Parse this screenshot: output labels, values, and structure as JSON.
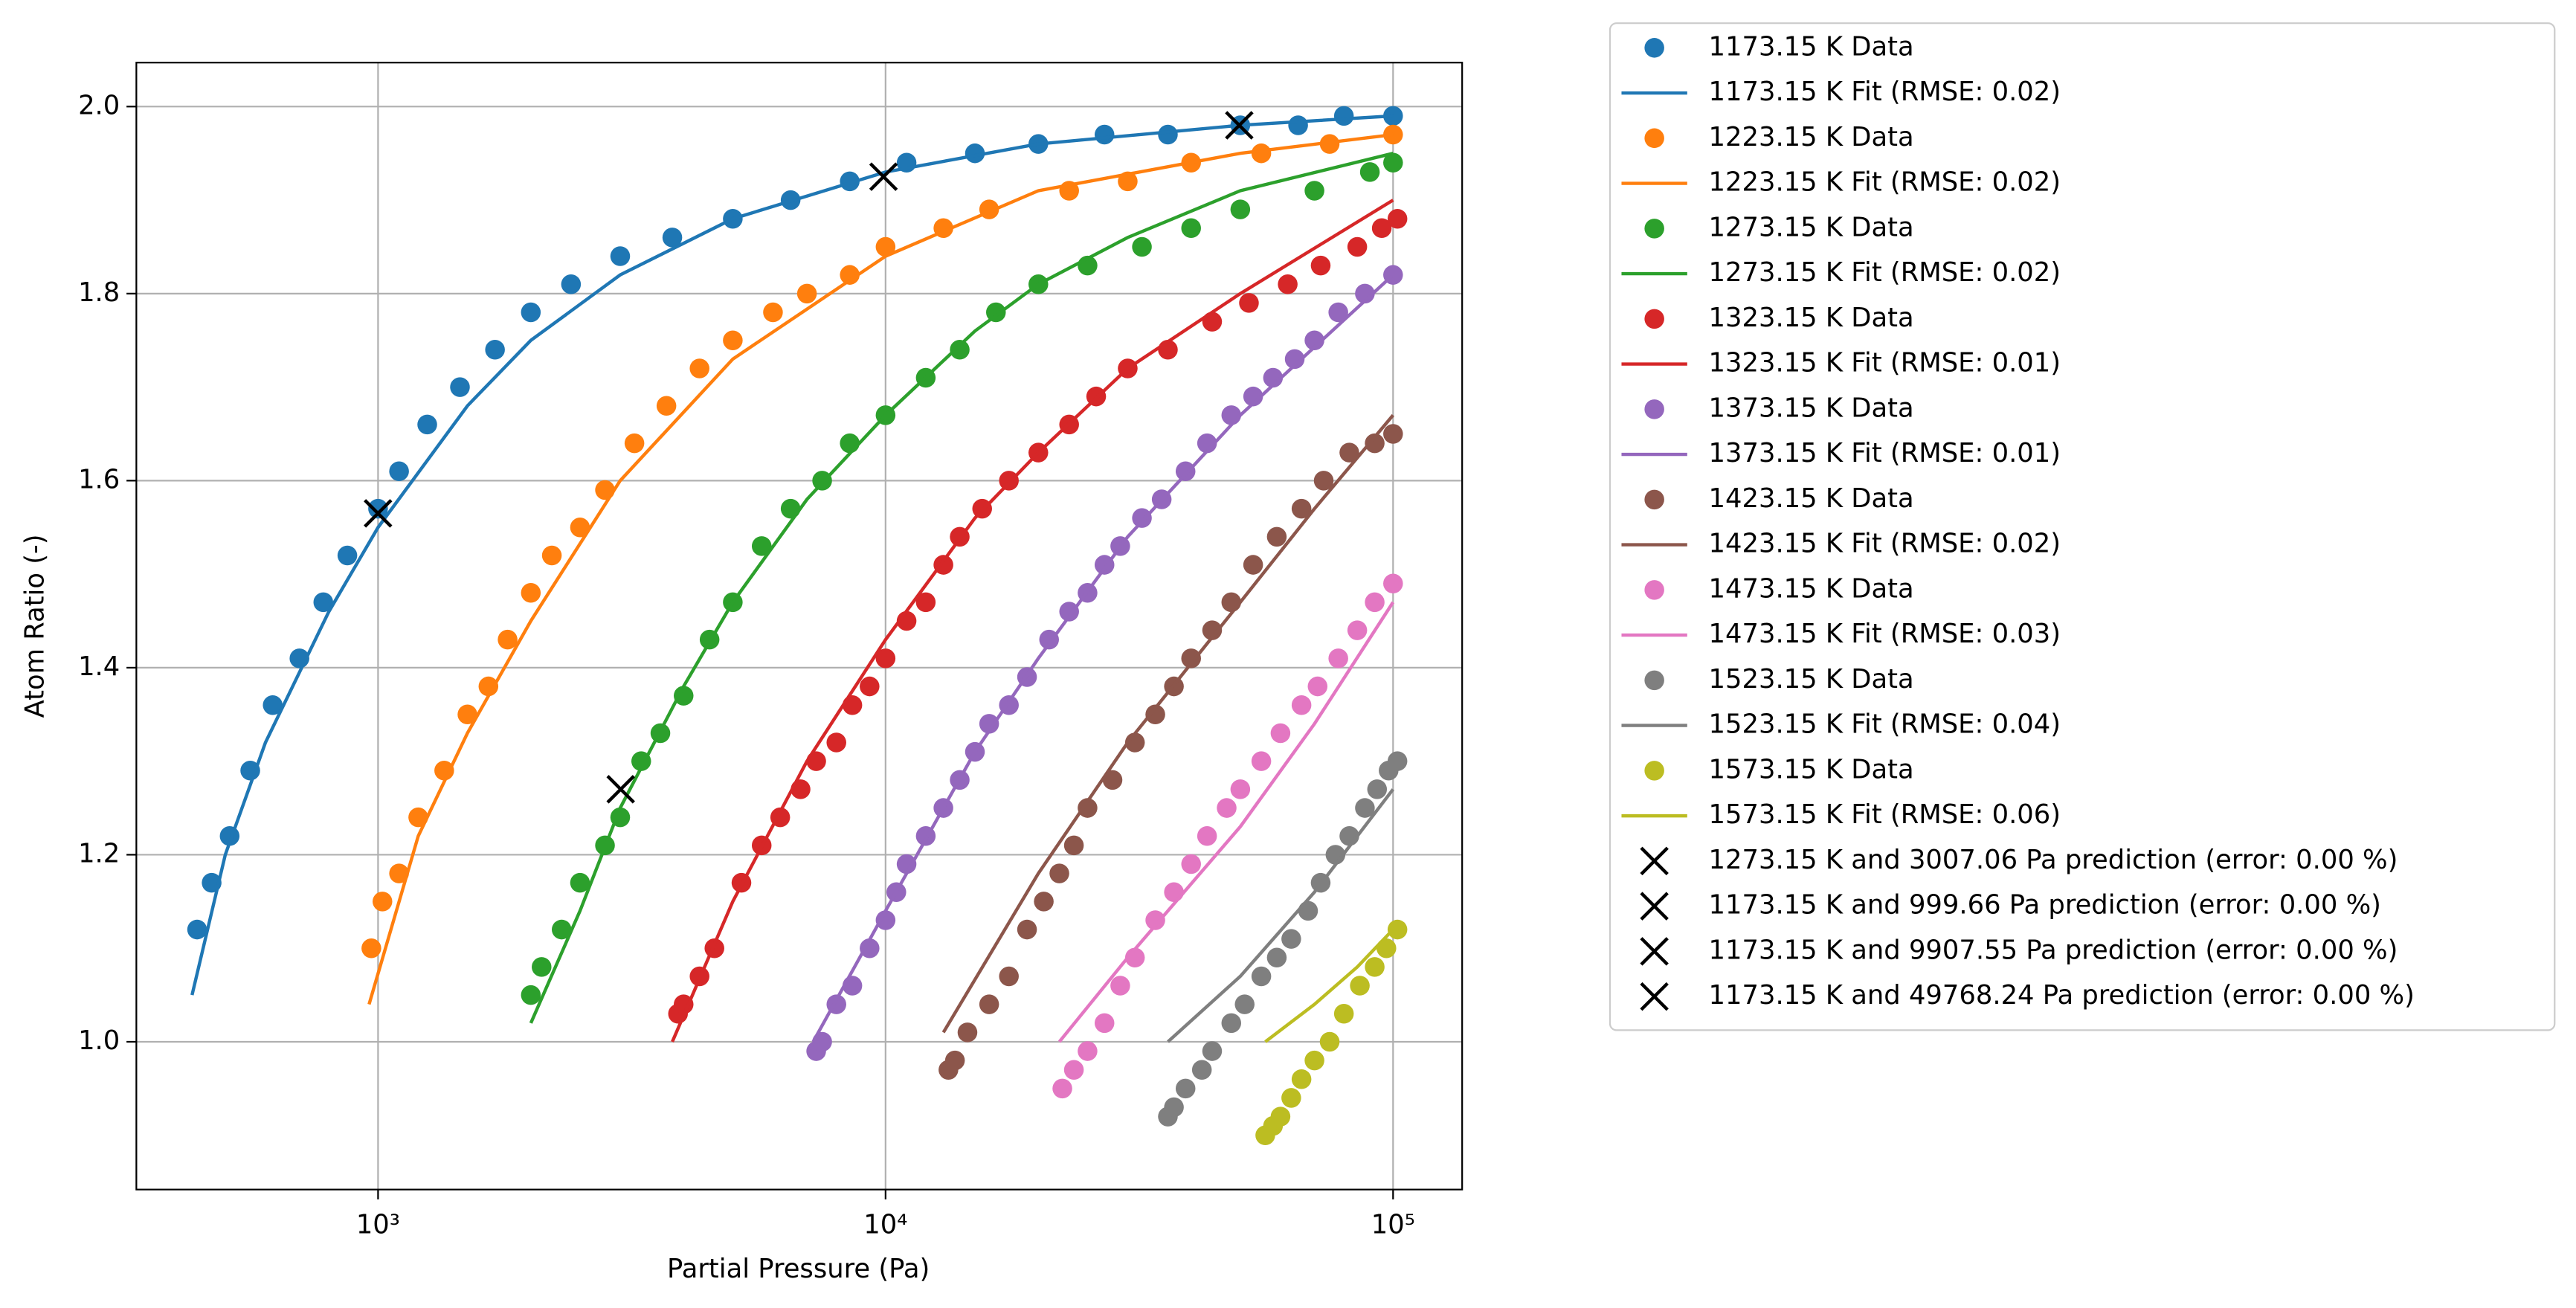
{
  "chart_data": {
    "type": "scatter",
    "x_label": "Partial Pressure (Pa)",
    "y_label": "Atom Ratio (-)",
    "xscale": "log",
    "xlim": [
      334,
      136800
    ],
    "ylim": [
      0.842,
      2.047
    ],
    "xticks": [
      {
        "value": 1000,
        "label": "10³"
      },
      {
        "value": 10000,
        "label": "10⁴"
      },
      {
        "value": 100000,
        "label": "10⁵"
      }
    ],
    "yticks": [
      {
        "value": 1,
        "label": "1.0"
      },
      1.2,
      1.4,
      1.6,
      1.8,
      {
        "value": 2,
        "label": "2.0"
      }
    ],
    "grid": true,
    "legend": "outside right",
    "series": [
      {
        "name": "1173.15 K Data",
        "type": "scatter",
        "color": "#1f77b4",
        "x": [
          440,
          470,
          510,
          560,
          620,
          700,
          780,
          870,
          1000,
          1100,
          1250,
          1450,
          1700,
          2000,
          2400,
          3000,
          3800,
          5000,
          6500,
          8500,
          11000,
          15000,
          20000,
          27000,
          36000,
          50000,
          65000,
          80000,
          100000
        ],
        "values": [
          1.12,
          1.17,
          1.22,
          1.29,
          1.36,
          1.41,
          1.47,
          1.52,
          1.57,
          1.61,
          1.66,
          1.7,
          1.74,
          1.78,
          1.81,
          1.84,
          1.86,
          1.88,
          1.9,
          1.92,
          1.94,
          1.95,
          1.96,
          1.97,
          1.97,
          1.98,
          1.98,
          1.99,
          1.99
        ]
      },
      {
        "name": "1173.15 K Fit (RMSE: 0.02)",
        "type": "line",
        "color": "#1f77b4",
        "x": [
          430,
          500,
          600,
          800,
          1000,
          1500,
          2000,
          3000,
          5000,
          10000,
          20000,
          50000,
          100000
        ],
        "values": [
          1.05,
          1.2,
          1.32,
          1.46,
          1.55,
          1.68,
          1.75,
          1.82,
          1.88,
          1.93,
          1.96,
          1.98,
          1.99
        ]
      },
      {
        "name": "1223.15 K Data",
        "type": "scatter",
        "color": "#ff7f0e",
        "x": [
          970,
          1020,
          1100,
          1200,
          1350,
          1500,
          1650,
          1800,
          2000,
          2200,
          2500,
          2800,
          3200,
          3700,
          4300,
          5000,
          6000,
          7000,
          8500,
          10000,
          13000,
          16000,
          23000,
          30000,
          40000,
          55000,
          75000,
          100000
        ],
        "values": [
          1.1,
          1.15,
          1.18,
          1.24,
          1.29,
          1.35,
          1.38,
          1.43,
          1.48,
          1.52,
          1.55,
          1.59,
          1.64,
          1.68,
          1.72,
          1.75,
          1.78,
          1.8,
          1.82,
          1.85,
          1.87,
          1.89,
          1.91,
          1.92,
          1.94,
          1.95,
          1.96,
          1.97
        ]
      },
      {
        "name": "1223.15 K Fit (RMSE: 0.02)",
        "type": "line",
        "color": "#ff7f0e",
        "x": [
          960,
          1200,
          1500,
          2000,
          3000,
          5000,
          10000,
          20000,
          50000,
          100000
        ],
        "values": [
          1.04,
          1.22,
          1.33,
          1.45,
          1.6,
          1.73,
          1.84,
          1.91,
          1.95,
          1.97
        ]
      },
      {
        "name": "1273.15 K Data",
        "type": "scatter",
        "color": "#2ca02c",
        "x": [
          2000,
          2100,
          2300,
          2500,
          2800,
          3000,
          3300,
          3600,
          4000,
          4500,
          5000,
          5700,
          6500,
          7500,
          8500,
          10000,
          12000,
          14000,
          16500,
          20000,
          25000,
          32000,
          40000,
          50000,
          70000,
          90000,
          100000
        ],
        "values": [
          1.05,
          1.08,
          1.12,
          1.17,
          1.21,
          1.24,
          1.3,
          1.33,
          1.37,
          1.43,
          1.47,
          1.53,
          1.57,
          1.6,
          1.64,
          1.67,
          1.71,
          1.74,
          1.78,
          1.81,
          1.83,
          1.85,
          1.87,
          1.89,
          1.91,
          1.93,
          1.94
        ]
      },
      {
        "name": "1273.15 K Fit (RMSE: 0.02)",
        "type": "line",
        "color": "#2ca02c",
        "x": [
          2000,
          2500,
          3000,
          4000,
          5000,
          7000,
          10000,
          15000,
          20000,
          30000,
          50000,
          100000
        ],
        "values": [
          1.02,
          1.14,
          1.25,
          1.38,
          1.47,
          1.58,
          1.67,
          1.76,
          1.81,
          1.86,
          1.91,
          1.95
        ]
      },
      {
        "name": "1323.15 K Data",
        "type": "scatter",
        "color": "#d62728",
        "x": [
          3900,
          4000,
          4300,
          4600,
          5200,
          5700,
          6200,
          6800,
          7300,
          8000,
          8600,
          9300,
          10000,
          11000,
          12000,
          13000,
          14000,
          15500,
          17500,
          20000,
          23000,
          26000,
          30000,
          36000,
          44000,
          52000,
          62000,
          72000,
          85000,
          95000,
          102000
        ],
        "values": [
          1.03,
          1.04,
          1.07,
          1.1,
          1.17,
          1.21,
          1.24,
          1.27,
          1.3,
          1.32,
          1.36,
          1.38,
          1.41,
          1.45,
          1.47,
          1.51,
          1.54,
          1.57,
          1.6,
          1.63,
          1.66,
          1.69,
          1.72,
          1.74,
          1.77,
          1.79,
          1.81,
          1.83,
          1.85,
          1.87,
          1.88
        ]
      },
      {
        "name": "1323.15 K Fit (RMSE: 0.01)",
        "type": "line",
        "color": "#d62728",
        "x": [
          3800,
          5000,
          7000,
          10000,
          15000,
          20000,
          30000,
          50000,
          100000
        ],
        "values": [
          1.0,
          1.15,
          1.3,
          1.43,
          1.56,
          1.63,
          1.72,
          1.8,
          1.9
        ]
      },
      {
        "name": "1373.15 K Data",
        "type": "scatter",
        "color": "#9467bd",
        "x": [
          7300,
          7500,
          8000,
          8600,
          9300,
          10000,
          10500,
          11000,
          12000,
          13000,
          14000,
          15000,
          16000,
          17500,
          19000,
          21000,
          23000,
          25000,
          27000,
          29000,
          32000,
          35000,
          39000,
          43000,
          48000,
          53000,
          58000,
          64000,
          70000,
          78000,
          88000,
          100000
        ],
        "values": [
          0.99,
          1.0,
          1.04,
          1.06,
          1.1,
          1.13,
          1.16,
          1.19,
          1.22,
          1.25,
          1.28,
          1.31,
          1.34,
          1.36,
          1.39,
          1.43,
          1.46,
          1.48,
          1.51,
          1.53,
          1.56,
          1.58,
          1.61,
          1.64,
          1.67,
          1.69,
          1.71,
          1.73,
          1.75,
          1.78,
          1.8,
          1.82
        ]
      },
      {
        "name": "1373.15 K Fit (RMSE: 0.01)",
        "type": "line",
        "color": "#9467bd",
        "x": [
          7200,
          10000,
          15000,
          20000,
          30000,
          50000,
          100000
        ],
        "values": [
          1.0,
          1.14,
          1.31,
          1.41,
          1.54,
          1.67,
          1.82
        ]
      },
      {
        "name": "1423.15 K Data",
        "type": "scatter",
        "color": "#8c564b",
        "x": [
          13300,
          13700,
          14500,
          16000,
          17500,
          19000,
          20500,
          22000,
          23500,
          25000,
          28000,
          31000,
          34000,
          37000,
          40000,
          44000,
          48000,
          53000,
          59000,
          66000,
          73000,
          82000,
          92000,
          100000
        ],
        "values": [
          0.97,
          0.98,
          1.01,
          1.04,
          1.07,
          1.12,
          1.15,
          1.18,
          1.21,
          1.25,
          1.28,
          1.32,
          1.35,
          1.38,
          1.41,
          1.44,
          1.47,
          1.51,
          1.54,
          1.57,
          1.6,
          1.63,
          1.64,
          1.65
        ]
      },
      {
        "name": "1423.15 K Fit (RMSE: 0.02)",
        "type": "line",
        "color": "#8c564b",
        "x": [
          13000,
          20000,
          30000,
          50000,
          70000,
          100000
        ],
        "values": [
          1.01,
          1.18,
          1.32,
          1.47,
          1.57,
          1.67
        ]
      },
      {
        "name": "1473.15 K Data",
        "type": "scatter",
        "color": "#e377c2",
        "x": [
          22300,
          23500,
          25000,
          27000,
          29000,
          31000,
          34000,
          37000,
          40000,
          43000,
          47000,
          50000,
          55000,
          60000,
          66000,
          71000,
          78000,
          85000,
          92000,
          100000
        ],
        "values": [
          0.95,
          0.97,
          0.99,
          1.02,
          1.06,
          1.09,
          1.13,
          1.16,
          1.19,
          1.22,
          1.25,
          1.27,
          1.3,
          1.33,
          1.36,
          1.38,
          1.41,
          1.44,
          1.47,
          1.49
        ]
      },
      {
        "name": "1473.15 K Fit (RMSE: 0.03)",
        "type": "line",
        "color": "#e377c2",
        "x": [
          22000,
          30000,
          50000,
          70000,
          100000
        ],
        "values": [
          1.0,
          1.09,
          1.23,
          1.34,
          1.47
        ]
      },
      {
        "name": "1523.15 K Data",
        "type": "scatter",
        "color": "#7f7f7f",
        "x": [
          36000,
          37000,
          39000,
          42000,
          44000,
          48000,
          51000,
          55000,
          59000,
          63000,
          68000,
          72000,
          77000,
          82000,
          88000,
          93000,
          98000,
          102000
        ],
        "values": [
          0.92,
          0.93,
          0.95,
          0.97,
          0.99,
          1.02,
          1.04,
          1.07,
          1.09,
          1.11,
          1.14,
          1.17,
          1.2,
          1.22,
          1.25,
          1.27,
          1.29,
          1.3
        ]
      },
      {
        "name": "1523.15 K Fit (RMSE: 0.04)",
        "type": "line",
        "color": "#7f7f7f",
        "x": [
          36000,
          50000,
          70000,
          100000
        ],
        "values": [
          1.0,
          1.07,
          1.16,
          1.27
        ]
      },
      {
        "name": "1573.15 K Data",
        "type": "scatter",
        "color": "#bcbd22",
        "x": [
          56000,
          58000,
          60000,
          63000,
          66000,
          70000,
          75000,
          80000,
          86000,
          92000,
          97000,
          102000
        ],
        "values": [
          0.9,
          0.91,
          0.92,
          0.94,
          0.96,
          0.98,
          1.0,
          1.03,
          1.06,
          1.08,
          1.1,
          1.12
        ]
      },
      {
        "name": "1573.15 K Fit (RMSE: 0.06)",
        "type": "line",
        "color": "#bcbd22",
        "x": [
          56000,
          70000,
          85000,
          100000
        ],
        "values": [
          1.0,
          1.04,
          1.08,
          1.12
        ]
      },
      {
        "name": "1273.15 K and 3007.06 Pa prediction (error: 0.00 %)",
        "type": "cross",
        "color": "#000000",
        "x": [
          3007.06
        ],
        "values": [
          1.27
        ]
      },
      {
        "name": "1173.15 K and 999.66 Pa prediction (error: 0.00 %)",
        "type": "cross",
        "color": "#000000",
        "x": [
          999.66
        ],
        "values": [
          1.565
        ]
      },
      {
        "name": "1173.15 K and 9907.55 Pa prediction (error: 0.00 %)",
        "type": "cross",
        "color": "#000000",
        "x": [
          9907.55
        ],
        "values": [
          1.925
        ]
      },
      {
        "name": "1173.15 K and 49768.24 Pa prediction (error: 0.00 %)",
        "type": "cross",
        "color": "#000000",
        "x": [
          49768.24
        ],
        "values": [
          1.98
        ]
      }
    ]
  }
}
